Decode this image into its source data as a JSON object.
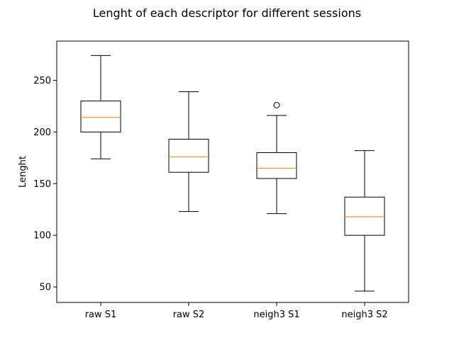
{
  "chart_data": {
    "type": "box",
    "title": "Lenght of each descriptor for different sessions",
    "xlabel": "",
    "ylabel": "Lenght",
    "ylim": [
      35,
      288
    ],
    "yticks": [
      50,
      100,
      150,
      200,
      250
    ],
    "categories": [
      "raw S1",
      "raw S2",
      "neigh3 S1",
      "neigh3 S2"
    ],
    "boxes": [
      {
        "name": "raw S1",
        "whisker_low": 174,
        "q1": 200,
        "median": 214,
        "q3": 230,
        "whisker_high": 274,
        "outliers": []
      },
      {
        "name": "raw S2",
        "whisker_low": 123,
        "q1": 161,
        "median": 176,
        "q3": 193,
        "whisker_high": 239,
        "outliers": []
      },
      {
        "name": "neigh3 S1",
        "whisker_low": 121,
        "q1": 155,
        "median": 165,
        "q3": 180,
        "whisker_high": 216,
        "outliers": [
          226
        ]
      },
      {
        "name": "neigh3 S2",
        "whisker_low": 46,
        "q1": 100,
        "median": 118,
        "q3": 137,
        "whisker_high": 182,
        "outliers": []
      }
    ],
    "grid": false,
    "legend": "none",
    "colors": {
      "box": "#000000",
      "median": "#ff7f0e",
      "background": "#ffffff"
    }
  }
}
